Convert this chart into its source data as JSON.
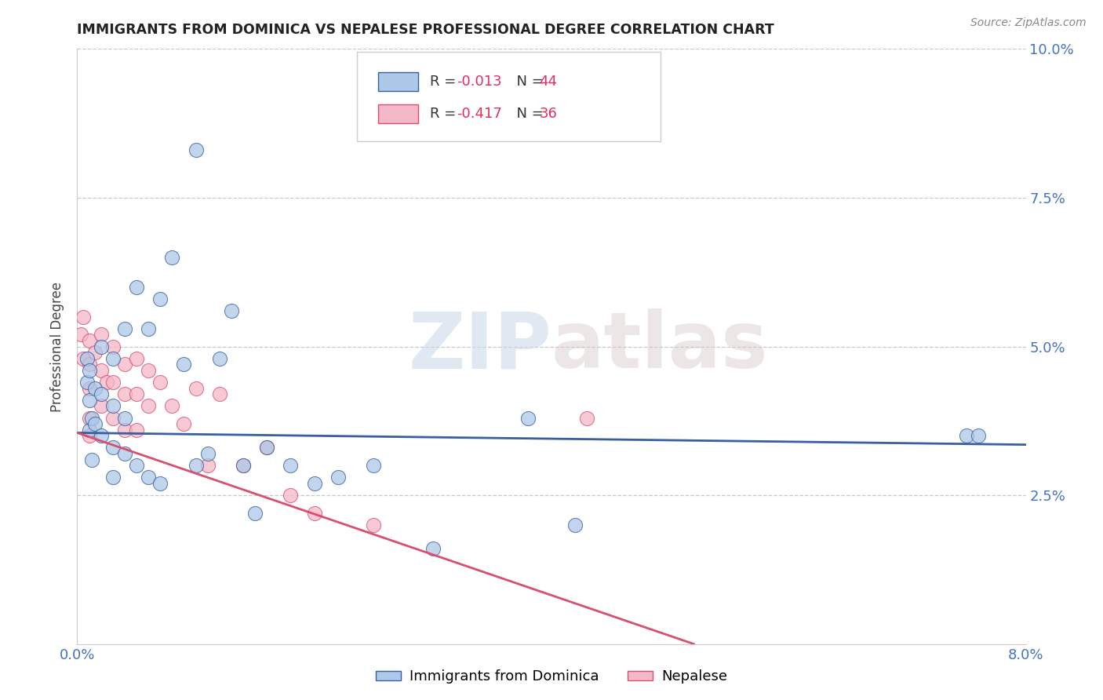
{
  "title": "IMMIGRANTS FROM DOMINICA VS NEPALESE PROFESSIONAL DEGREE CORRELATION CHART",
  "source": "Source: ZipAtlas.com",
  "ylabel": "Professional Degree",
  "xlim": [
    0.0,
    0.08
  ],
  "ylim": [
    0.0,
    0.1
  ],
  "legend_r1": "-0.013",
  "legend_n1": "44",
  "legend_r2": "-0.417",
  "legend_n2": "36",
  "color_dominica": "#adc8e8",
  "color_nepalese": "#f5b8c8",
  "color_line_dominica": "#3a5fa0",
  "color_line_nepalese": "#d94f6e",
  "watermark_zip": "ZIP",
  "watermark_atlas": "atlas",
  "background_color": "#ffffff",
  "tick_color": "#4472c4",
  "dominica_x": [
    0.0008,
    0.0008,
    0.001,
    0.001,
    0.001,
    0.0012,
    0.0012,
    0.0015,
    0.0015,
    0.002,
    0.002,
    0.002,
    0.003,
    0.003,
    0.003,
    0.003,
    0.004,
    0.004,
    0.004,
    0.005,
    0.005,
    0.006,
    0.006,
    0.007,
    0.007,
    0.008,
    0.009,
    0.01,
    0.01,
    0.011,
    0.012,
    0.013,
    0.014,
    0.015,
    0.016,
    0.018,
    0.02,
    0.022,
    0.025,
    0.03,
    0.038,
    0.042,
    0.075,
    0.076
  ],
  "dominica_y": [
    0.048,
    0.044,
    0.046,
    0.041,
    0.036,
    0.038,
    0.031,
    0.043,
    0.037,
    0.05,
    0.042,
    0.035,
    0.048,
    0.04,
    0.033,
    0.028,
    0.053,
    0.038,
    0.032,
    0.06,
    0.03,
    0.053,
    0.028,
    0.058,
    0.027,
    0.065,
    0.047,
    0.083,
    0.03,
    0.032,
    0.048,
    0.056,
    0.03,
    0.022,
    0.033,
    0.03,
    0.027,
    0.028,
    0.03,
    0.016,
    0.038,
    0.02,
    0.035,
    0.035
  ],
  "nepalese_x": [
    0.0003,
    0.0005,
    0.0005,
    0.001,
    0.001,
    0.001,
    0.001,
    0.001,
    0.0015,
    0.002,
    0.002,
    0.002,
    0.0025,
    0.003,
    0.003,
    0.003,
    0.004,
    0.004,
    0.004,
    0.005,
    0.005,
    0.005,
    0.006,
    0.006,
    0.007,
    0.008,
    0.009,
    0.01,
    0.011,
    0.012,
    0.014,
    0.016,
    0.018,
    0.02,
    0.025,
    0.043
  ],
  "nepalese_y": [
    0.052,
    0.055,
    0.048,
    0.051,
    0.047,
    0.043,
    0.038,
    0.035,
    0.049,
    0.052,
    0.046,
    0.04,
    0.044,
    0.05,
    0.044,
    0.038,
    0.047,
    0.042,
    0.036,
    0.048,
    0.042,
    0.036,
    0.046,
    0.04,
    0.044,
    0.04,
    0.037,
    0.043,
    0.03,
    0.042,
    0.03,
    0.033,
    0.025,
    0.022,
    0.02,
    0.038
  ],
  "blue_line_x": [
    0.0,
    0.08
  ],
  "blue_line_y": [
    0.0355,
    0.0335
  ],
  "pink_line_x": [
    0.0,
    0.052
  ],
  "pink_line_y": [
    0.0355,
    0.0
  ]
}
